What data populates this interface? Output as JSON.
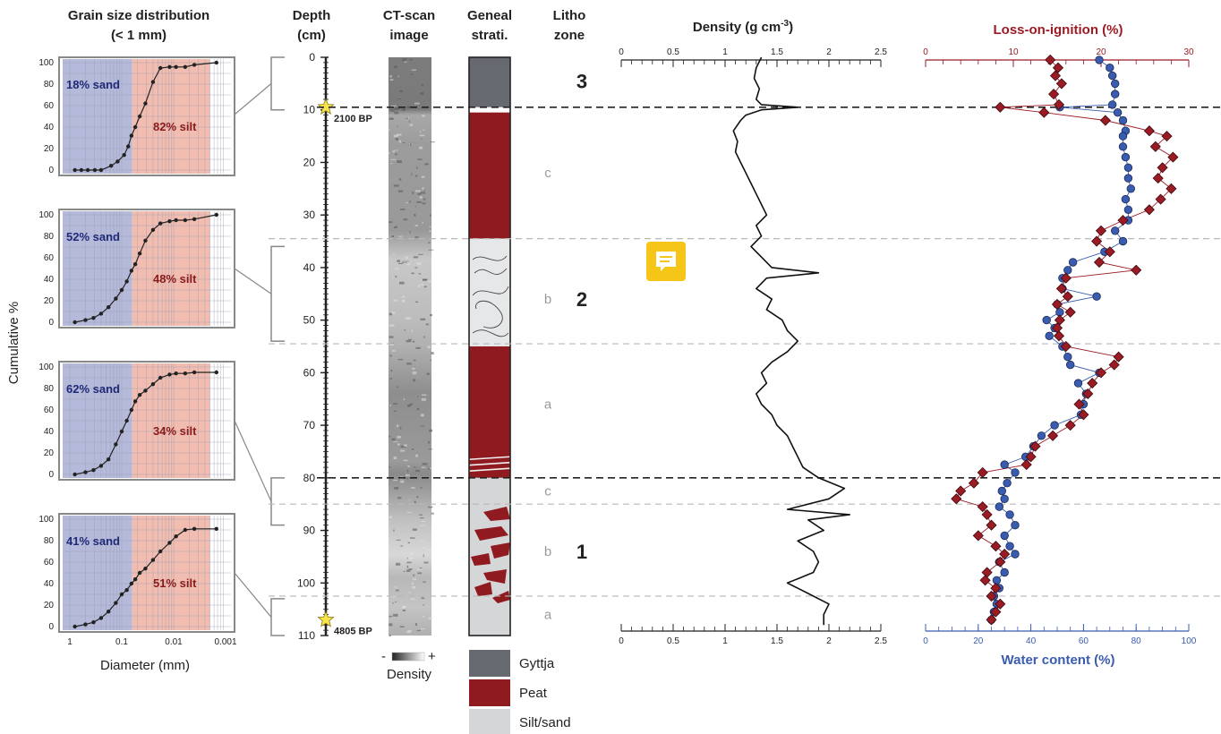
{
  "headers": {
    "gs_title_1": "Grain size distribution",
    "gs_title_2": "(< 1 mm)",
    "depth": [
      "Depth",
      "(cm)"
    ],
    "ct": [
      "CT-scan",
      "image"
    ],
    "geneal": [
      "Geneal",
      "strati."
    ],
    "litho": [
      "Litho",
      "zone"
    ]
  },
  "grain_size": {
    "y_label": "Cumulative %",
    "x_label": "Diameter (mm)",
    "x_ticks": [
      "1",
      "0.1",
      "0.01",
      "0.001"
    ],
    "y_ticks": [
      "0",
      "20",
      "40",
      "60",
      "80",
      "100"
    ],
    "panels": [
      {
        "sand": "18% sand",
        "silt": "82% silt"
      },
      {
        "sand": "52% sand",
        "silt": "48% silt"
      },
      {
        "sand": "62% sand",
        "silt": "34% silt"
      },
      {
        "sand": "41% sand",
        "silt": "51% silt"
      }
    ]
  },
  "depth_axis": {
    "ticks": [
      "0",
      "10",
      "20",
      "30",
      "40",
      "50",
      "60",
      "70",
      "80",
      "90",
      "100",
      "110"
    ],
    "dates": [
      {
        "depth": 9.5,
        "label": "2100 BP"
      },
      {
        "depth": 107,
        "label": "4805 BP"
      }
    ]
  },
  "ct_legend": {
    "minus": "-",
    "plus": "+",
    "label": "Density"
  },
  "strat_legend": [
    {
      "label": "Gyttja",
      "color": "#666a70"
    },
    {
      "label": "Peat",
      "color": "#8f1a20"
    },
    {
      "label": "Silt/sand",
      "color": "#d5d6d8"
    }
  ],
  "zones": {
    "numbers": [
      {
        "label": "3",
        "depth": 4.5
      },
      {
        "label": "2",
        "depth": 46
      },
      {
        "label": "1",
        "depth": 94
      }
    ],
    "subzones": [
      {
        "label": "c",
        "depth": 22
      },
      {
        "label": "b",
        "depth": 46
      },
      {
        "label": "a",
        "depth": 66
      },
      {
        "label": "c",
        "depth": 82.5
      },
      {
        "label": "b",
        "depth": 94
      },
      {
        "label": "a",
        "depth": 106
      }
    ]
  },
  "chart_data": [
    {
      "type": "line",
      "title": "Density (g cm-3)",
      "title_main": "Density (g cm",
      "title_sup": "-3",
      "title_end": ")",
      "xlim": [
        0,
        2.5
      ],
      "x_ticks": [
        "0",
        "0.5",
        "1",
        "1.5",
        "2",
        "2.5"
      ],
      "y_axis": "Depth (cm)",
      "ylim": [
        0,
        110
      ],
      "depth": [
        0,
        2,
        4,
        6,
        8,
        9,
        9.5,
        10,
        11,
        12,
        14,
        16,
        18,
        20,
        22,
        24,
        26,
        28,
        30,
        32,
        34,
        36,
        38,
        40,
        41,
        42,
        44,
        46,
        48,
        50,
        52,
        54,
        56,
        58,
        60,
        62,
        64,
        66,
        68,
        70,
        72,
        74,
        76,
        78,
        80,
        82,
        84,
        86,
        87,
        88,
        90,
        92,
        94,
        96,
        98,
        100,
        102,
        104,
        106,
        108
      ],
      "values": [
        1.35,
        1.3,
        1.28,
        1.33,
        1.3,
        1.35,
        1.7,
        1.35,
        1.2,
        1.15,
        1.08,
        1.12,
        1.1,
        1.15,
        1.2,
        1.25,
        1.3,
        1.35,
        1.4,
        1.3,
        1.35,
        1.25,
        1.35,
        1.45,
        1.9,
        1.4,
        1.3,
        1.45,
        1.4,
        1.55,
        1.6,
        1.7,
        1.6,
        1.45,
        1.35,
        1.4,
        1.3,
        1.35,
        1.45,
        1.5,
        1.6,
        1.65,
        1.7,
        1.75,
        1.9,
        2.15,
        2.0,
        1.6,
        2.2,
        1.8,
        1.95,
        1.7,
        1.85,
        1.9,
        1.85,
        1.6,
        1.8,
        2.0,
        1.95,
        1.95
      ]
    },
    {
      "type": "scatter",
      "title": "Loss-on-ignition (%)",
      "xlabel": "Water content (%)",
      "top_axis": {
        "name": "Loss-on-ignition (%)",
        "range": [
          0,
          30
        ],
        "ticks": [
          "0",
          "10",
          "20",
          "30"
        ],
        "color": "#9b1b25"
      },
      "bottom_axis": {
        "name": "Water content (%)",
        "range": [
          0,
          100
        ],
        "ticks": [
          "0",
          "20",
          "40",
          "60",
          "80",
          "100"
        ],
        "color": "#3a5cb0"
      },
      "ylim": [
        0,
        110
      ],
      "series": [
        {
          "name": "Loss-on-ignition (%)",
          "color": "#9b1b25",
          "depth": [
            0.5,
            2,
            3.5,
            5,
            7,
            9,
            9.5,
            10.5,
            12,
            14,
            15,
            17,
            19,
            21,
            23,
            25,
            27,
            29,
            31,
            33,
            35,
            37,
            39,
            40.5,
            42,
            44,
            45.5,
            47,
            48.5,
            50,
            51.5,
            53,
            55,
            57,
            58.5,
            60,
            62,
            64,
            66,
            68,
            70,
            72,
            74,
            76,
            77.5,
            79,
            81,
            82.5,
            84,
            85.5,
            87,
            89,
            91,
            93,
            94.5,
            96,
            98,
            99.5,
            101,
            102.5,
            104,
            105.5,
            107
          ],
          "values": [
            14.2,
            15.1,
            14.8,
            15.5,
            14.6,
            15.2,
            8.5,
            13.5,
            20.5,
            25.5,
            27.5,
            26.2,
            28.2,
            27.0,
            26.5,
            28.0,
            26.8,
            25.5,
            22.5,
            20.0,
            19.5,
            21.0,
            19.8,
            24.0,
            16.0,
            15.5,
            16.2,
            15.0,
            16.5,
            15.3,
            15.0,
            15.2,
            16.0,
            22.0,
            21.5,
            20.0,
            19.0,
            18.5,
            17.5,
            18.0,
            16.5,
            14.5,
            12.5,
            12.0,
            11.5,
            6.5,
            5.5,
            4.0,
            3.5,
            6.5,
            7.0,
            7.5,
            6.0,
            8.0,
            9.0,
            8.5,
            7.0,
            6.8,
            8.0,
            7.5,
            8.5,
            8.0,
            7.5
          ]
        },
        {
          "name": "Water content (%)",
          "color": "#3a5cb0",
          "depth": [
            0.5,
            2,
            3.5,
            5,
            7,
            9,
            9.5,
            10.5,
            12,
            14,
            15,
            17,
            19,
            21,
            23,
            25,
            27,
            29,
            31,
            33,
            35,
            37,
            39,
            40.5,
            42,
            44,
            45.5,
            47,
            48.5,
            50,
            51.5,
            53,
            55,
            57,
            58.5,
            60,
            62,
            64,
            66,
            68,
            70,
            72,
            74,
            76,
            77.5,
            79,
            81,
            82.5,
            84,
            85.5,
            87,
            89,
            91,
            93,
            94.5,
            96,
            98,
            99.5,
            101,
            102.5,
            104,
            105.5,
            107
          ],
          "values": [
            66,
            70,
            71,
            72,
            72,
            71,
            51,
            73,
            75,
            76,
            75,
            75,
            76,
            77,
            77,
            78,
            76,
            77,
            77,
            72,
            75,
            68,
            56,
            54,
            52,
            52,
            65,
            50,
            51,
            46,
            49,
            47,
            52,
            54,
            55,
            66,
            58,
            61,
            60,
            59,
            49,
            44,
            41,
            38,
            30,
            34,
            31,
            29,
            30,
            28,
            32,
            34,
            30,
            32,
            34,
            28,
            30,
            27,
            28,
            26,
            27,
            26,
            25
          ]
        }
      ]
    }
  ]
}
